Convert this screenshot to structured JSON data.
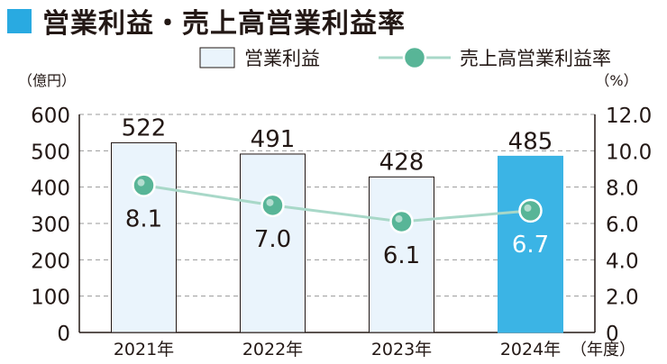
{
  "title": "営業利益・売上高営業利益率",
  "colors": {
    "accent": "#29aae1",
    "bar_fill": "#eaf4fc",
    "bar_highlight": "#3bb4e5",
    "line": "#a8d8c8",
    "marker": "#58b597",
    "grid": "#9a9a9a",
    "text": "#231815"
  },
  "chart_data": {
    "type": "bar",
    "categories": [
      "2021年",
      "2022年",
      "2023年",
      "2024年"
    ],
    "x_unit": "（年度）",
    "y_left_unit": "（億円）",
    "y_right_unit": "（%）",
    "y_left_ticks": [
      "600",
      "500",
      "400",
      "300",
      "200",
      "100",
      "0"
    ],
    "y_right_ticks": [
      "12.0",
      "10.0",
      "8.0",
      "6.0",
      "4.0",
      "2.0",
      "0"
    ],
    "y_left_range": [
      0,
      600
    ],
    "y_right_range": [
      0,
      12
    ],
    "grid": true,
    "legend_position": "top-right",
    "highlight_index": 3,
    "series": [
      {
        "name": "営業利益",
        "type": "bar",
        "axis": "left",
        "values": [
          522,
          491,
          428,
          485
        ],
        "labels": [
          "522",
          "491",
          "428",
          "485"
        ]
      },
      {
        "name": "売上高営業利益率",
        "type": "line",
        "axis": "right",
        "values": [
          8.1,
          7.0,
          6.1,
          6.7
        ],
        "labels": [
          "8.1",
          "7.0",
          "6.1",
          "6.7"
        ]
      }
    ]
  }
}
